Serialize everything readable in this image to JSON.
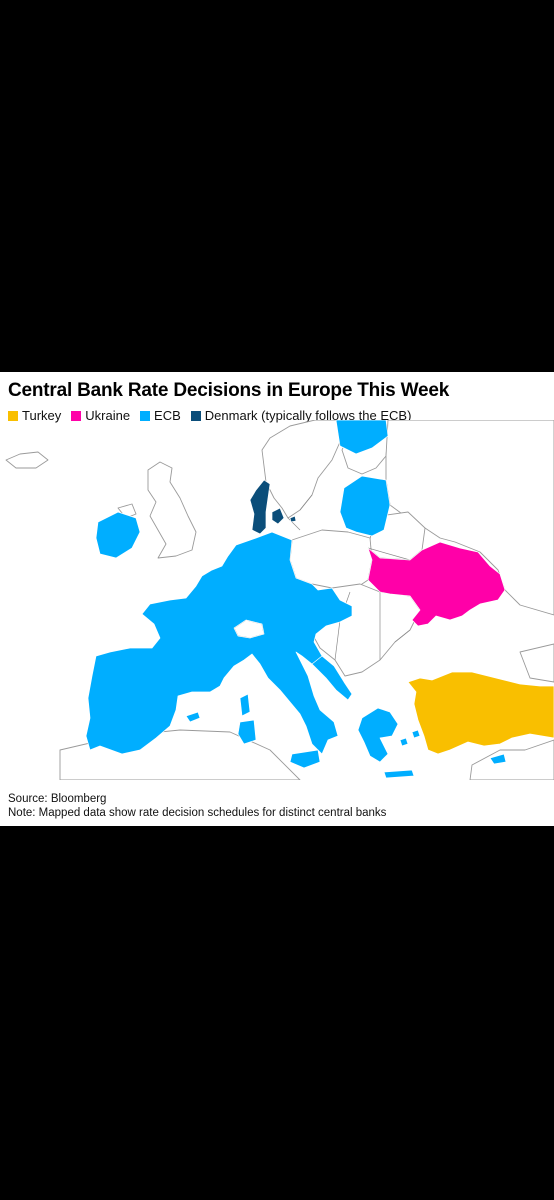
{
  "title": "Central Bank Rate Decisions in Europe This Week",
  "legend": [
    {
      "label": "Turkey",
      "color": "#F9BF00"
    },
    {
      "label": "Ukraine",
      "color": "#FF00A8"
    },
    {
      "label": "ECB",
      "color": "#00AEFF"
    },
    {
      "label": "Denmark (typically follows the ECB)",
      "color": "#0B4E7A"
    }
  ],
  "footer": {
    "source": "Source: Bloomberg",
    "note": "Note: Mapped data show rate decision schedules for distinct central banks"
  }
}
